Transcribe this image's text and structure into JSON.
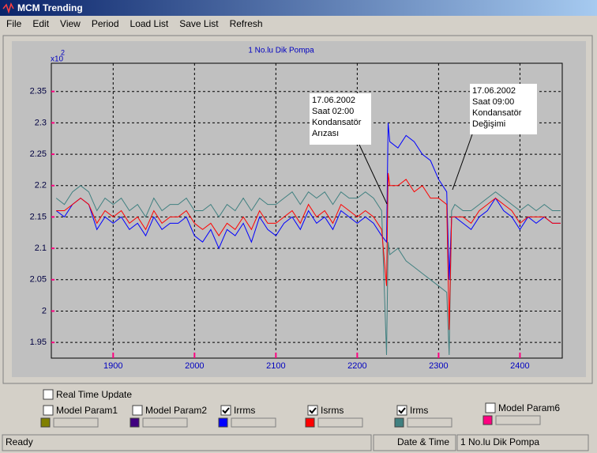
{
  "window": {
    "title": "MCM Trending",
    "menu": [
      "File",
      "Edit",
      "View",
      "Period",
      "Load List",
      "Save List",
      "Refresh"
    ]
  },
  "chart_data": {
    "type": "line",
    "title": "1 No.lu Dik Pompa",
    "y_multiplier": "x10",
    "y_exponent": "2",
    "x": [
      1830,
      1840,
      1850,
      1860,
      1870,
      1880,
      1890,
      1900,
      1910,
      1920,
      1930,
      1940,
      1950,
      1960,
      1970,
      1980,
      1990,
      2000,
      2010,
      2020,
      2030,
      2040,
      2050,
      2060,
      2070,
      2080,
      2090,
      2100,
      2110,
      2120,
      2130,
      2140,
      2150,
      2160,
      2170,
      2180,
      2190,
      2200,
      2210,
      2220,
      2230,
      2236,
      2238,
      2240,
      2250,
      2260,
      2270,
      2280,
      2290,
      2300,
      2310,
      2313,
      2316,
      2320,
      2330,
      2340,
      2350,
      2360,
      2370,
      2380,
      2390,
      2400,
      2410,
      2420,
      2430,
      2440,
      2450
    ],
    "series": [
      {
        "name": "Irrms",
        "color": "#0000ff",
        "checked": true,
        "values": [
          2.16,
          2.15,
          2.17,
          2.18,
          2.17,
          2.13,
          2.15,
          2.14,
          2.15,
          2.13,
          2.14,
          2.12,
          2.15,
          2.13,
          2.14,
          2.14,
          2.15,
          2.12,
          2.11,
          2.13,
          2.1,
          2.13,
          2.12,
          2.14,
          2.11,
          2.15,
          2.13,
          2.12,
          2.14,
          2.15,
          2.13,
          2.16,
          2.14,
          2.15,
          2.13,
          2.16,
          2.15,
          2.14,
          2.15,
          2.14,
          2.12,
          2.11,
          2.3,
          2.27,
          2.26,
          2.28,
          2.27,
          2.25,
          2.24,
          2.21,
          2.19,
          2.05,
          2.15,
          2.15,
          2.14,
          2.13,
          2.15,
          2.16,
          2.18,
          2.16,
          2.15,
          2.13,
          2.15,
          2.14,
          2.15,
          2.14,
          2.14
        ]
      },
      {
        "name": "Isrms",
        "color": "#ff0000",
        "checked": true,
        "values": [
          2.16,
          2.16,
          2.17,
          2.18,
          2.17,
          2.14,
          2.16,
          2.15,
          2.16,
          2.14,
          2.15,
          2.13,
          2.16,
          2.14,
          2.15,
          2.15,
          2.16,
          2.14,
          2.13,
          2.14,
          2.12,
          2.14,
          2.13,
          2.15,
          2.13,
          2.16,
          2.14,
          2.14,
          2.15,
          2.16,
          2.14,
          2.17,
          2.15,
          2.16,
          2.14,
          2.17,
          2.16,
          2.15,
          2.16,
          2.15,
          2.13,
          2.04,
          2.22,
          2.2,
          2.2,
          2.21,
          2.19,
          2.2,
          2.18,
          2.18,
          2.17,
          1.97,
          2.15,
          2.15,
          2.15,
          2.14,
          2.16,
          2.17,
          2.18,
          2.17,
          2.16,
          2.14,
          2.15,
          2.15,
          2.15,
          2.14,
          2.14
        ]
      },
      {
        "name": "Irms",
        "color": "#408080",
        "checked": true,
        "values": [
          2.18,
          2.17,
          2.19,
          2.2,
          2.19,
          2.16,
          2.18,
          2.17,
          2.18,
          2.16,
          2.17,
          2.15,
          2.18,
          2.16,
          2.17,
          2.17,
          2.18,
          2.16,
          2.16,
          2.17,
          2.15,
          2.17,
          2.16,
          2.18,
          2.16,
          2.18,
          2.17,
          2.17,
          2.18,
          2.19,
          2.17,
          2.19,
          2.18,
          2.19,
          2.17,
          2.19,
          2.18,
          2.18,
          2.19,
          2.18,
          2.16,
          1.93,
          2.11,
          2.09,
          2.1,
          2.08,
          2.07,
          2.06,
          2.05,
          2.04,
          2.03,
          1.93,
          2.16,
          2.17,
          2.16,
          2.16,
          2.17,
          2.18,
          2.19,
          2.18,
          2.17,
          2.16,
          2.17,
          2.16,
          2.17,
          2.16,
          2.16
        ]
      }
    ],
    "xlim": [
      1824,
      2452
    ],
    "ylim": [
      1.925,
      2.395
    ],
    "xticks": [
      1900,
      2000,
      2100,
      2200,
      2300,
      2400
    ],
    "yticks": [
      1.95,
      2,
      2.05,
      2.1,
      2.15,
      2.2,
      2.25,
      2.3,
      2.35
    ],
    "grid": true,
    "annotations": [
      {
        "lines": [
          "17.06.2002",
          "Saat 02:00",
          "Kondansatör",
          "Arızası"
        ]
      },
      {
        "lines": [
          "17.06.2002",
          "Saat 09:00",
          "Kondansatör",
          "Değişimi"
        ]
      }
    ]
  },
  "real_time_update": {
    "label": "Real Time Update",
    "checked": false
  },
  "parameters": [
    {
      "label": "Model Param1",
      "checked": false,
      "color": "#808000"
    },
    {
      "label": "Model Param2",
      "checked": false,
      "color": "#400080"
    },
    {
      "label": "Model Param6",
      "checked": false,
      "color": "#ff0080"
    }
  ],
  "status": [
    "Ready",
    "Date & Time",
    "1 No.lu Dik Pompa"
  ]
}
